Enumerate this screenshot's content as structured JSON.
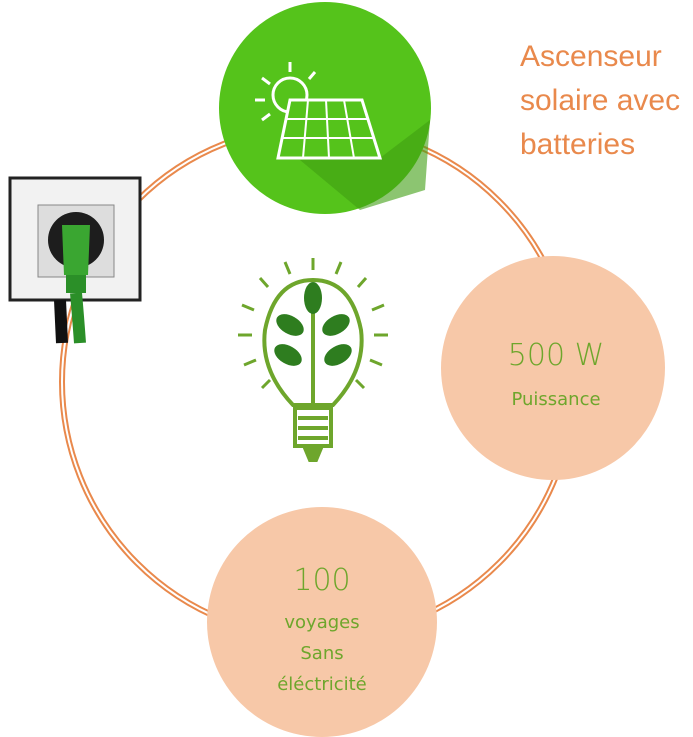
{
  "heading": {
    "lines": [
      "Ascenseur",
      "solaire avec",
      "batteries"
    ]
  },
  "power": {
    "value": "500 W",
    "label": "Puissance"
  },
  "trips": {
    "value": "100",
    "lines": [
      "voyages",
      "Sans",
      "éléctricité"
    ]
  }
}
